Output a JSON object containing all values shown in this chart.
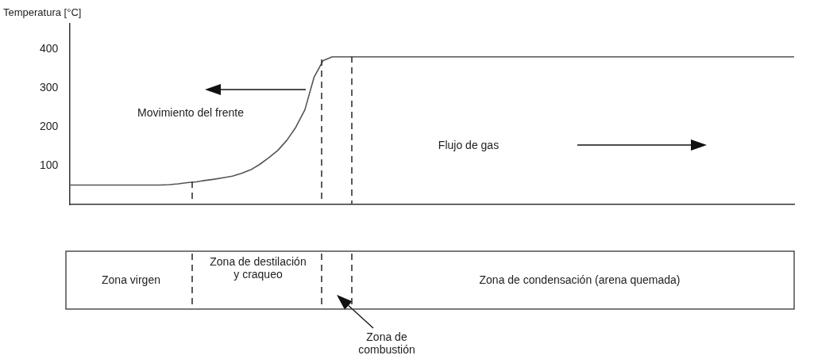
{
  "chart_data": {
    "type": "line",
    "ylabel": "Temperatura [°C]",
    "categories": [
      null,
      null,
      null,
      null,
      null,
      null,
      null,
      null,
      null,
      null,
      null,
      null,
      null,
      null,
      null,
      null,
      null,
      null,
      null,
      null,
      null,
      null,
      null,
      null,
      null,
      null,
      null,
      null,
      null,
      null,
      null,
      null,
      null,
      null,
      null,
      null,
      null,
      null,
      null,
      null,
      null,
      null,
      null,
      null,
      null,
      null,
      null,
      null,
      null,
      null,
      null,
      null,
      null,
      null,
      null,
      null,
      null,
      null,
      null,
      null,
      null,
      null,
      null,
      null,
      null,
      null,
      null,
      null,
      null,
      null,
      null,
      null,
      null,
      null,
      null,
      null,
      null,
      null,
      null,
      null,
      null
    ],
    "values": [
      50,
      50,
      50,
      50,
      50,
      50,
      50,
      50,
      50,
      50,
      50,
      51,
      53,
      56,
      58,
      62,
      65,
      69,
      73,
      80,
      89,
      103,
      120,
      139,
      165,
      199,
      244,
      327,
      370,
      380,
      380,
      380,
      380,
      380,
      380,
      380,
      380,
      380,
      380,
      380,
      380,
      380,
      380,
      380,
      380,
      380,
      380,
      380,
      380,
      380,
      380,
      380,
      380,
      380,
      380,
      380,
      380,
      380,
      380,
      380,
      380,
      380,
      380,
      380,
      380,
      380,
      380,
      380,
      380,
      380,
      380,
      380,
      380,
      380,
      380,
      380,
      380,
      380,
      380,
      380,
      380
    ],
    "color": "#555555",
    "ylim": [
      0,
      465
    ],
    "yticks": [
      100,
      200,
      300,
      400
    ],
    "grid": false,
    "legend": false,
    "marker": "none",
    "line_style": "solid",
    "tick_labels": "y",
    "annotations": [
      "Movimiento del frente",
      "Flujo de gas",
      "Zona virgen",
      "Zona de destilación y craqueo",
      "Zona de condensación (arena quemada)",
      "Zona de combustión"
    ]
  }
}
